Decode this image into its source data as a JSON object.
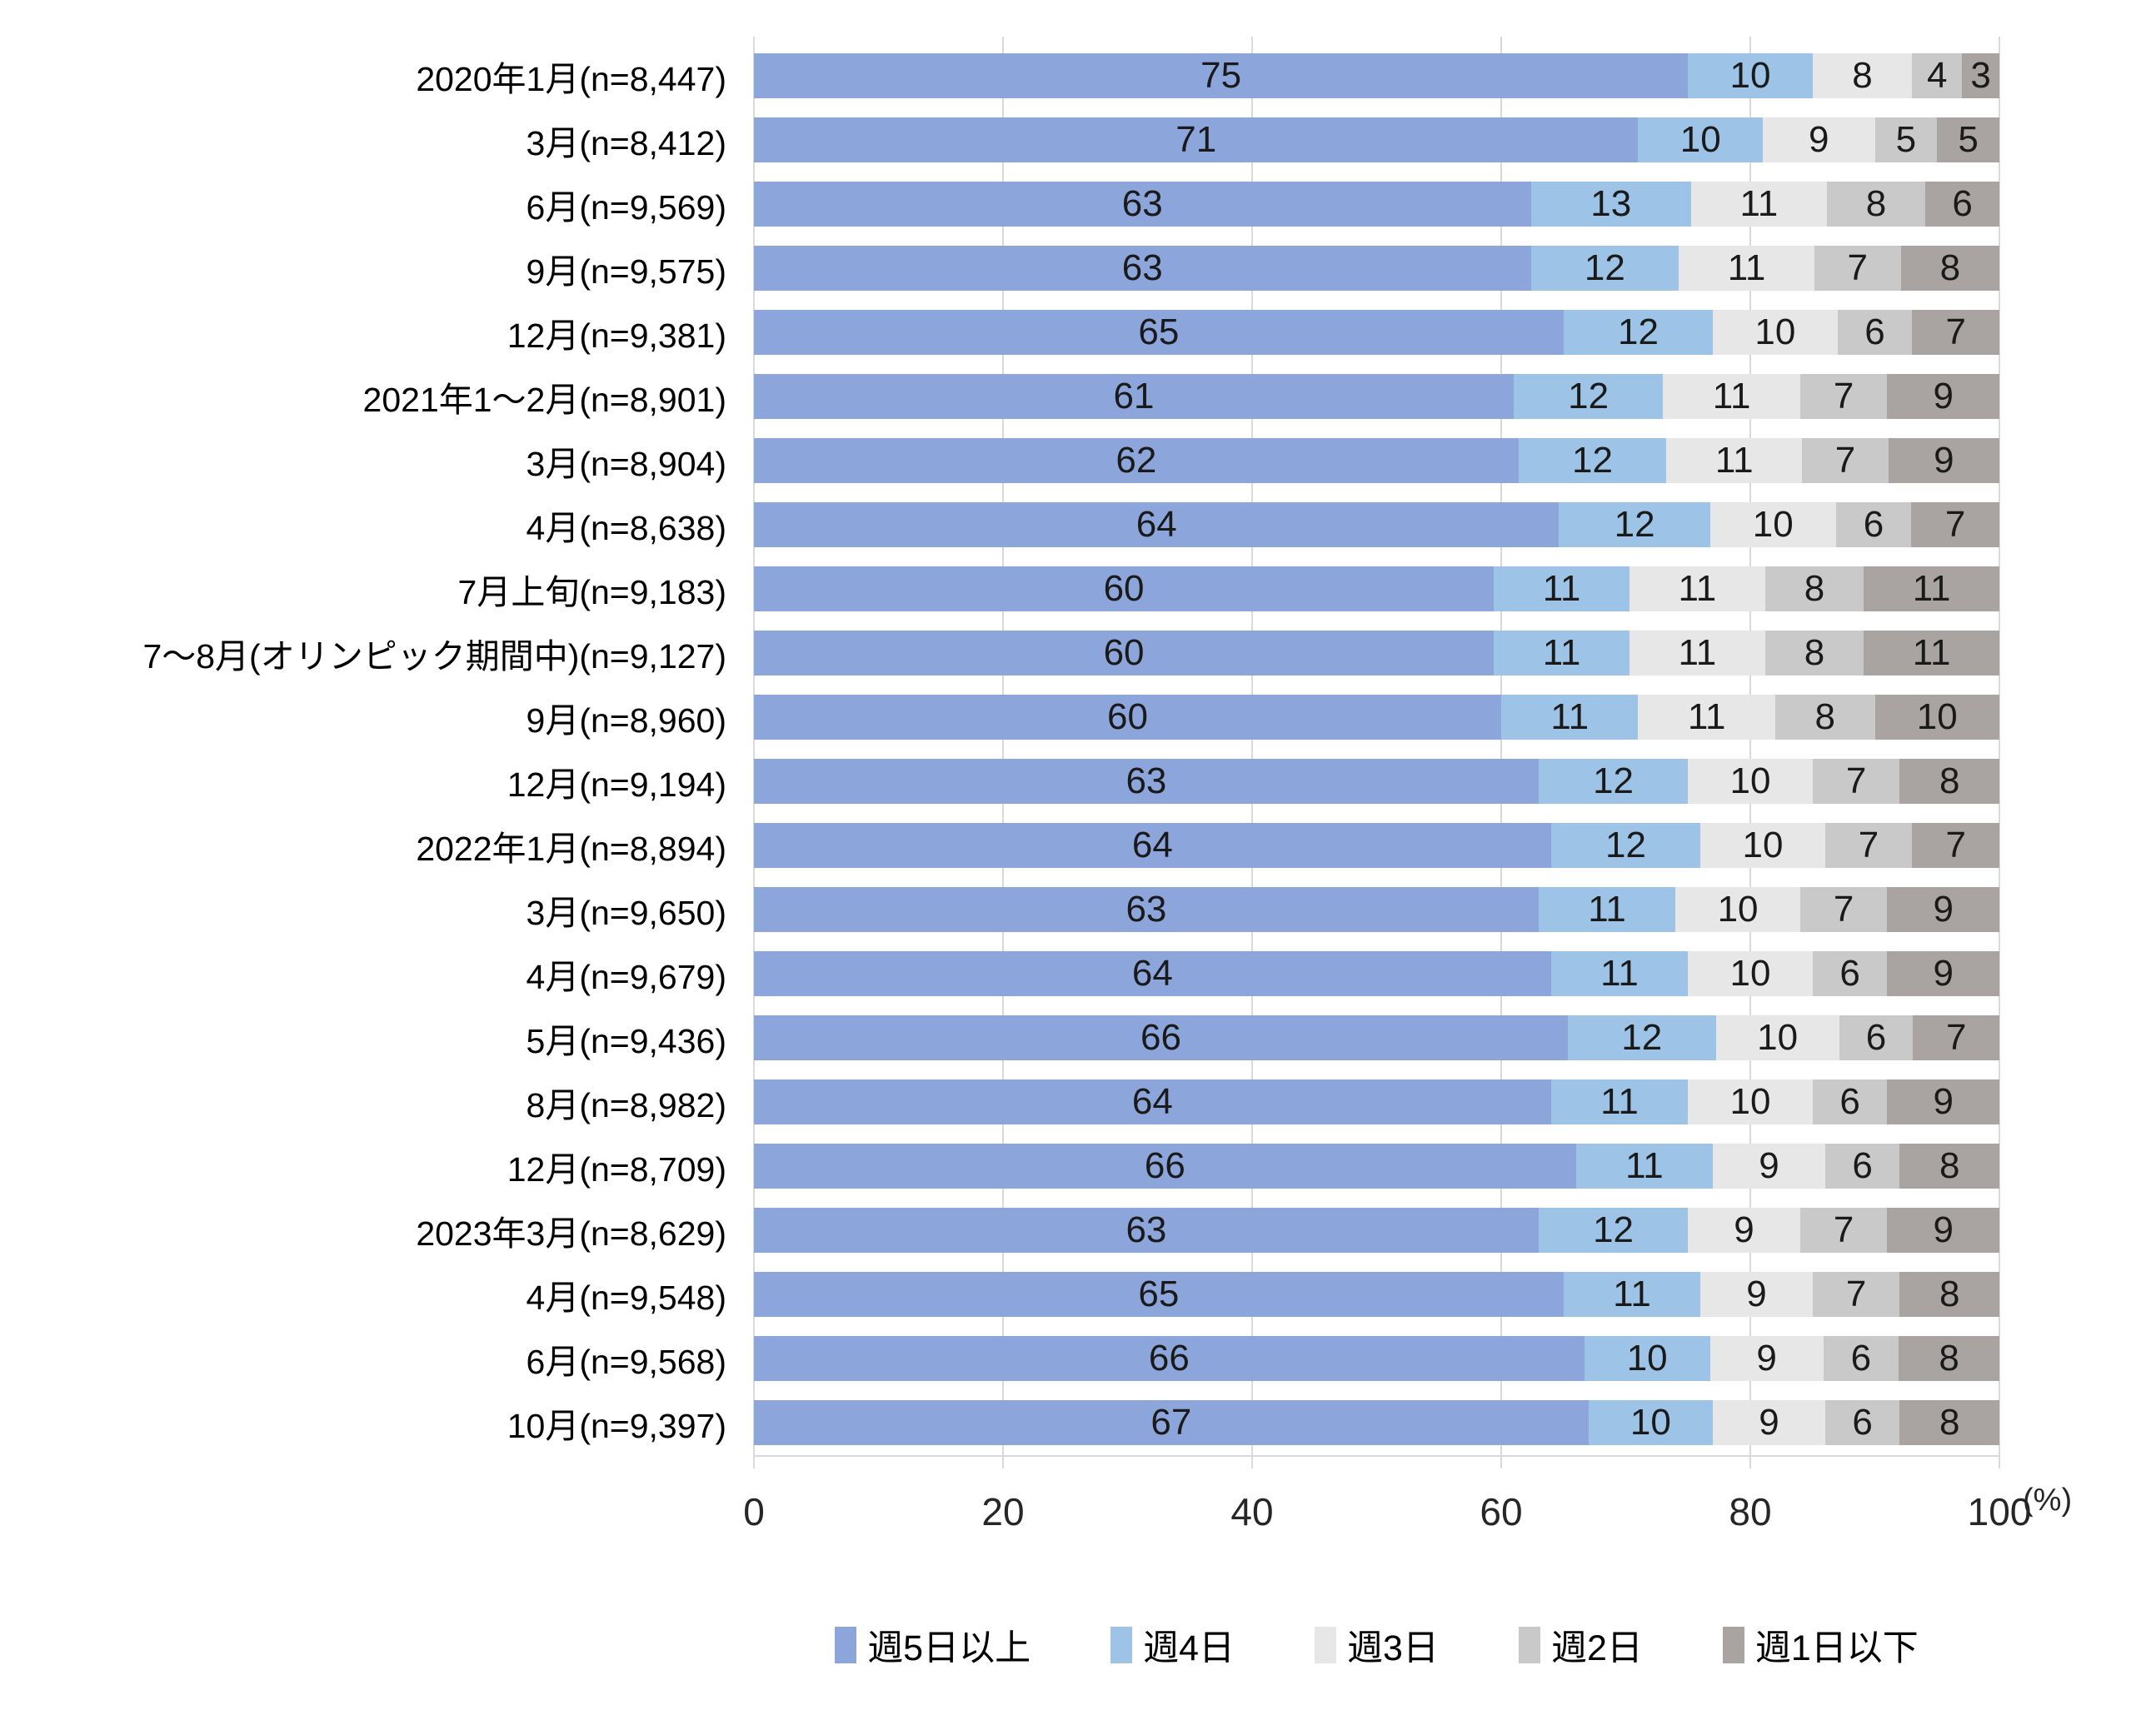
{
  "chart_data": {
    "type": "bar",
    "stacked": true,
    "orientation": "horizontal",
    "title": "",
    "unit_label": "(%)",
    "xlim": [
      0,
      100
    ],
    "x_ticks": [
      0,
      20,
      40,
      60,
      80,
      100
    ],
    "grid": true,
    "legend_position": "bottom",
    "series": [
      {
        "name": "週5日以上",
        "color": "#8CA6DC"
      },
      {
        "name": "週4日",
        "color": "#9DC3E6"
      },
      {
        "name": "週3日",
        "color": "#E8E7E7"
      },
      {
        "name": "週2日",
        "color": "#C9C9C9"
      },
      {
        "name": "週1日以下",
        "color": "#A9A4A1"
      }
    ],
    "rows": [
      {
        "label": "2020年1月(n=8,447)",
        "values": [
          75,
          10,
          8,
          4,
          3
        ]
      },
      {
        "label": "3月(n=8,412)",
        "values": [
          71,
          10,
          9,
          5,
          5
        ]
      },
      {
        "label": "6月(n=9,569)",
        "values": [
          63,
          13,
          11,
          8,
          6
        ]
      },
      {
        "label": "9月(n=9,575)",
        "values": [
          63,
          12,
          11,
          7,
          8
        ]
      },
      {
        "label": "12月(n=9,381)",
        "values": [
          65,
          12,
          10,
          6,
          7
        ]
      },
      {
        "label": "2021年1～2月(n=8,901)",
        "values": [
          61,
          12,
          11,
          7,
          9
        ]
      },
      {
        "label": "3月(n=8,904)",
        "values": [
          62,
          12,
          11,
          7,
          9
        ]
      },
      {
        "label": "4月(n=8,638)",
        "values": [
          64,
          12,
          10,
          6,
          7
        ]
      },
      {
        "label": "7月上旬(n=9,183)",
        "values": [
          60,
          11,
          11,
          8,
          11
        ]
      },
      {
        "label": "7～8月(オリンピック期間中)(n=9,127)",
        "values": [
          60,
          11,
          11,
          8,
          11
        ]
      },
      {
        "label": "9月(n=8,960)",
        "values": [
          60,
          11,
          11,
          8,
          10
        ]
      },
      {
        "label": "12月(n=9,194)",
        "values": [
          63,
          12,
          10,
          7,
          8
        ]
      },
      {
        "label": "2022年1月(n=8,894)",
        "values": [
          64,
          12,
          10,
          7,
          7
        ]
      },
      {
        "label": "3月(n=9,650)",
        "values": [
          63,
          11,
          10,
          7,
          9
        ]
      },
      {
        "label": "4月(n=9,679)",
        "values": [
          64,
          11,
          10,
          6,
          9
        ]
      },
      {
        "label": "5月(n=9,436)",
        "values": [
          66,
          12,
          10,
          6,
          7
        ]
      },
      {
        "label": "8月(n=8,982)",
        "values": [
          64,
          11,
          10,
          6,
          9
        ]
      },
      {
        "label": "12月(n=8,709)",
        "values": [
          66,
          11,
          9,
          6,
          8
        ]
      },
      {
        "label": "2023年3月(n=8,629)",
        "values": [
          63,
          12,
          9,
          7,
          9
        ]
      },
      {
        "label": "4月(n=9,548)",
        "values": [
          65,
          11,
          9,
          7,
          8
        ]
      },
      {
        "label": "6月(n=9,568)",
        "values": [
          66,
          10,
          9,
          6,
          8
        ]
      },
      {
        "label": "10月(n=9,397)",
        "values": [
          67,
          10,
          9,
          6,
          8
        ]
      }
    ],
    "colors": {
      "gridline": "#D9D9D9",
      "background": "#FFFFFF",
      "label_text": "#000000",
      "value_text": "#1A1A1A"
    }
  }
}
